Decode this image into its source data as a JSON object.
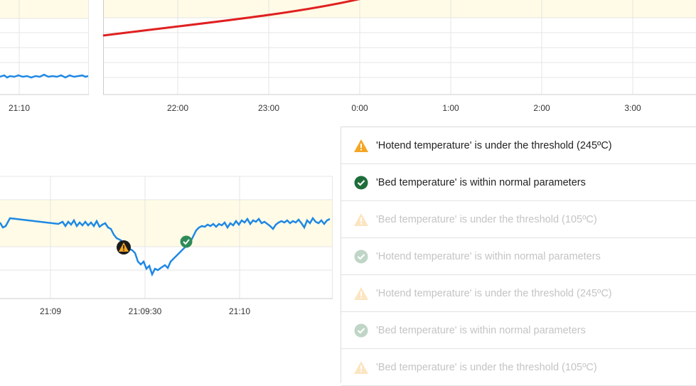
{
  "top_left_chart": {
    "x_ticks": [
      "21:10"
    ],
    "line_color": "#1e88e5",
    "band_color": "#fffbe6"
  },
  "top_right_chart": {
    "x_ticks": [
      "22:00",
      "23:00",
      "0:00",
      "1:00",
      "2:00",
      "3:00"
    ],
    "line_color": "#e02020"
  },
  "bottom_chart": {
    "x_ticks": [
      "21:09",
      "21:09:30",
      "21:10"
    ],
    "line_color": "#1e88e5",
    "band_color": "#fffbe6",
    "markers": [
      {
        "type": "warning",
        "icon": "warning-icon"
      },
      {
        "type": "ok",
        "icon": "check-icon"
      }
    ]
  },
  "alerts": [
    {
      "text": "'Hotend temperature' is under the threshold (245ºC)",
      "status": "warning",
      "faded": false
    },
    {
      "text": "'Bed temperature' is within normal parameters",
      "status": "ok",
      "faded": false
    },
    {
      "text": "'Bed temperature' is under the threshold (105ºC)",
      "status": "warning",
      "faded": true
    },
    {
      "text": "'Hotend temperature' is within normal parameters",
      "status": "ok",
      "faded": true
    },
    {
      "text": "'Hotend temperature' is under the threshold (245ºC)",
      "status": "warning",
      "faded": true
    },
    {
      "text": "'Bed temperature' is within normal parameters",
      "status": "ok",
      "faded": true
    },
    {
      "text": "'Bed temperature' is under the threshold (105ºC)",
      "status": "warning",
      "faded": true
    }
  ],
  "colors": {
    "warning": "#f5a623",
    "ok": "#1e6e3a",
    "grid": "#e6e6e6"
  }
}
